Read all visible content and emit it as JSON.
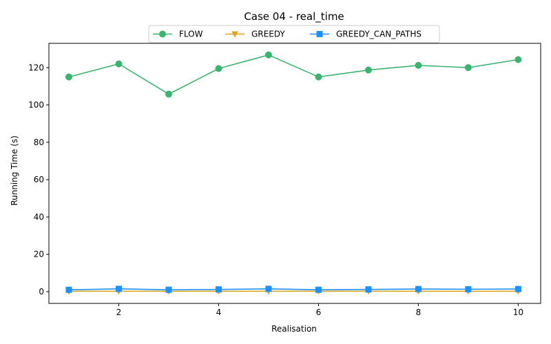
{
  "chart_data": {
    "type": "line",
    "title": "Case 04 - real_time",
    "xlabel": "Realisation",
    "ylabel": "Running Time (s)",
    "x": [
      1,
      2,
      3,
      4,
      5,
      6,
      7,
      8,
      9,
      10
    ],
    "xlim": [
      0.6,
      10.45
    ],
    "ylim": [
      -6.3,
      133.0
    ],
    "xticks": [
      2,
      4,
      6,
      8,
      10
    ],
    "yticks": [
      0,
      20,
      40,
      60,
      80,
      100,
      120
    ],
    "grid": false,
    "legend_position": "top-center",
    "series": [
      {
        "name": "FLOW",
        "color": "#3cb371",
        "marker": "circle",
        "values": [
          115.0,
          122.0,
          105.8,
          119.5,
          126.8,
          115.0,
          118.7,
          121.2,
          120.0,
          124.3
        ]
      },
      {
        "name": "GREEDY",
        "color": "#daa520",
        "marker": "triangle-down",
        "values": [
          0.2,
          0.2,
          0.2,
          0.2,
          0.2,
          0.2,
          0.2,
          0.2,
          0.2,
          0.2
        ]
      },
      {
        "name": "GREEDY_CAN_PATHS",
        "color": "#1e90ff",
        "marker": "square",
        "values": [
          1.0,
          1.5,
          1.0,
          1.2,
          1.5,
          1.0,
          1.2,
          1.4,
          1.3,
          1.4
        ]
      }
    ]
  }
}
